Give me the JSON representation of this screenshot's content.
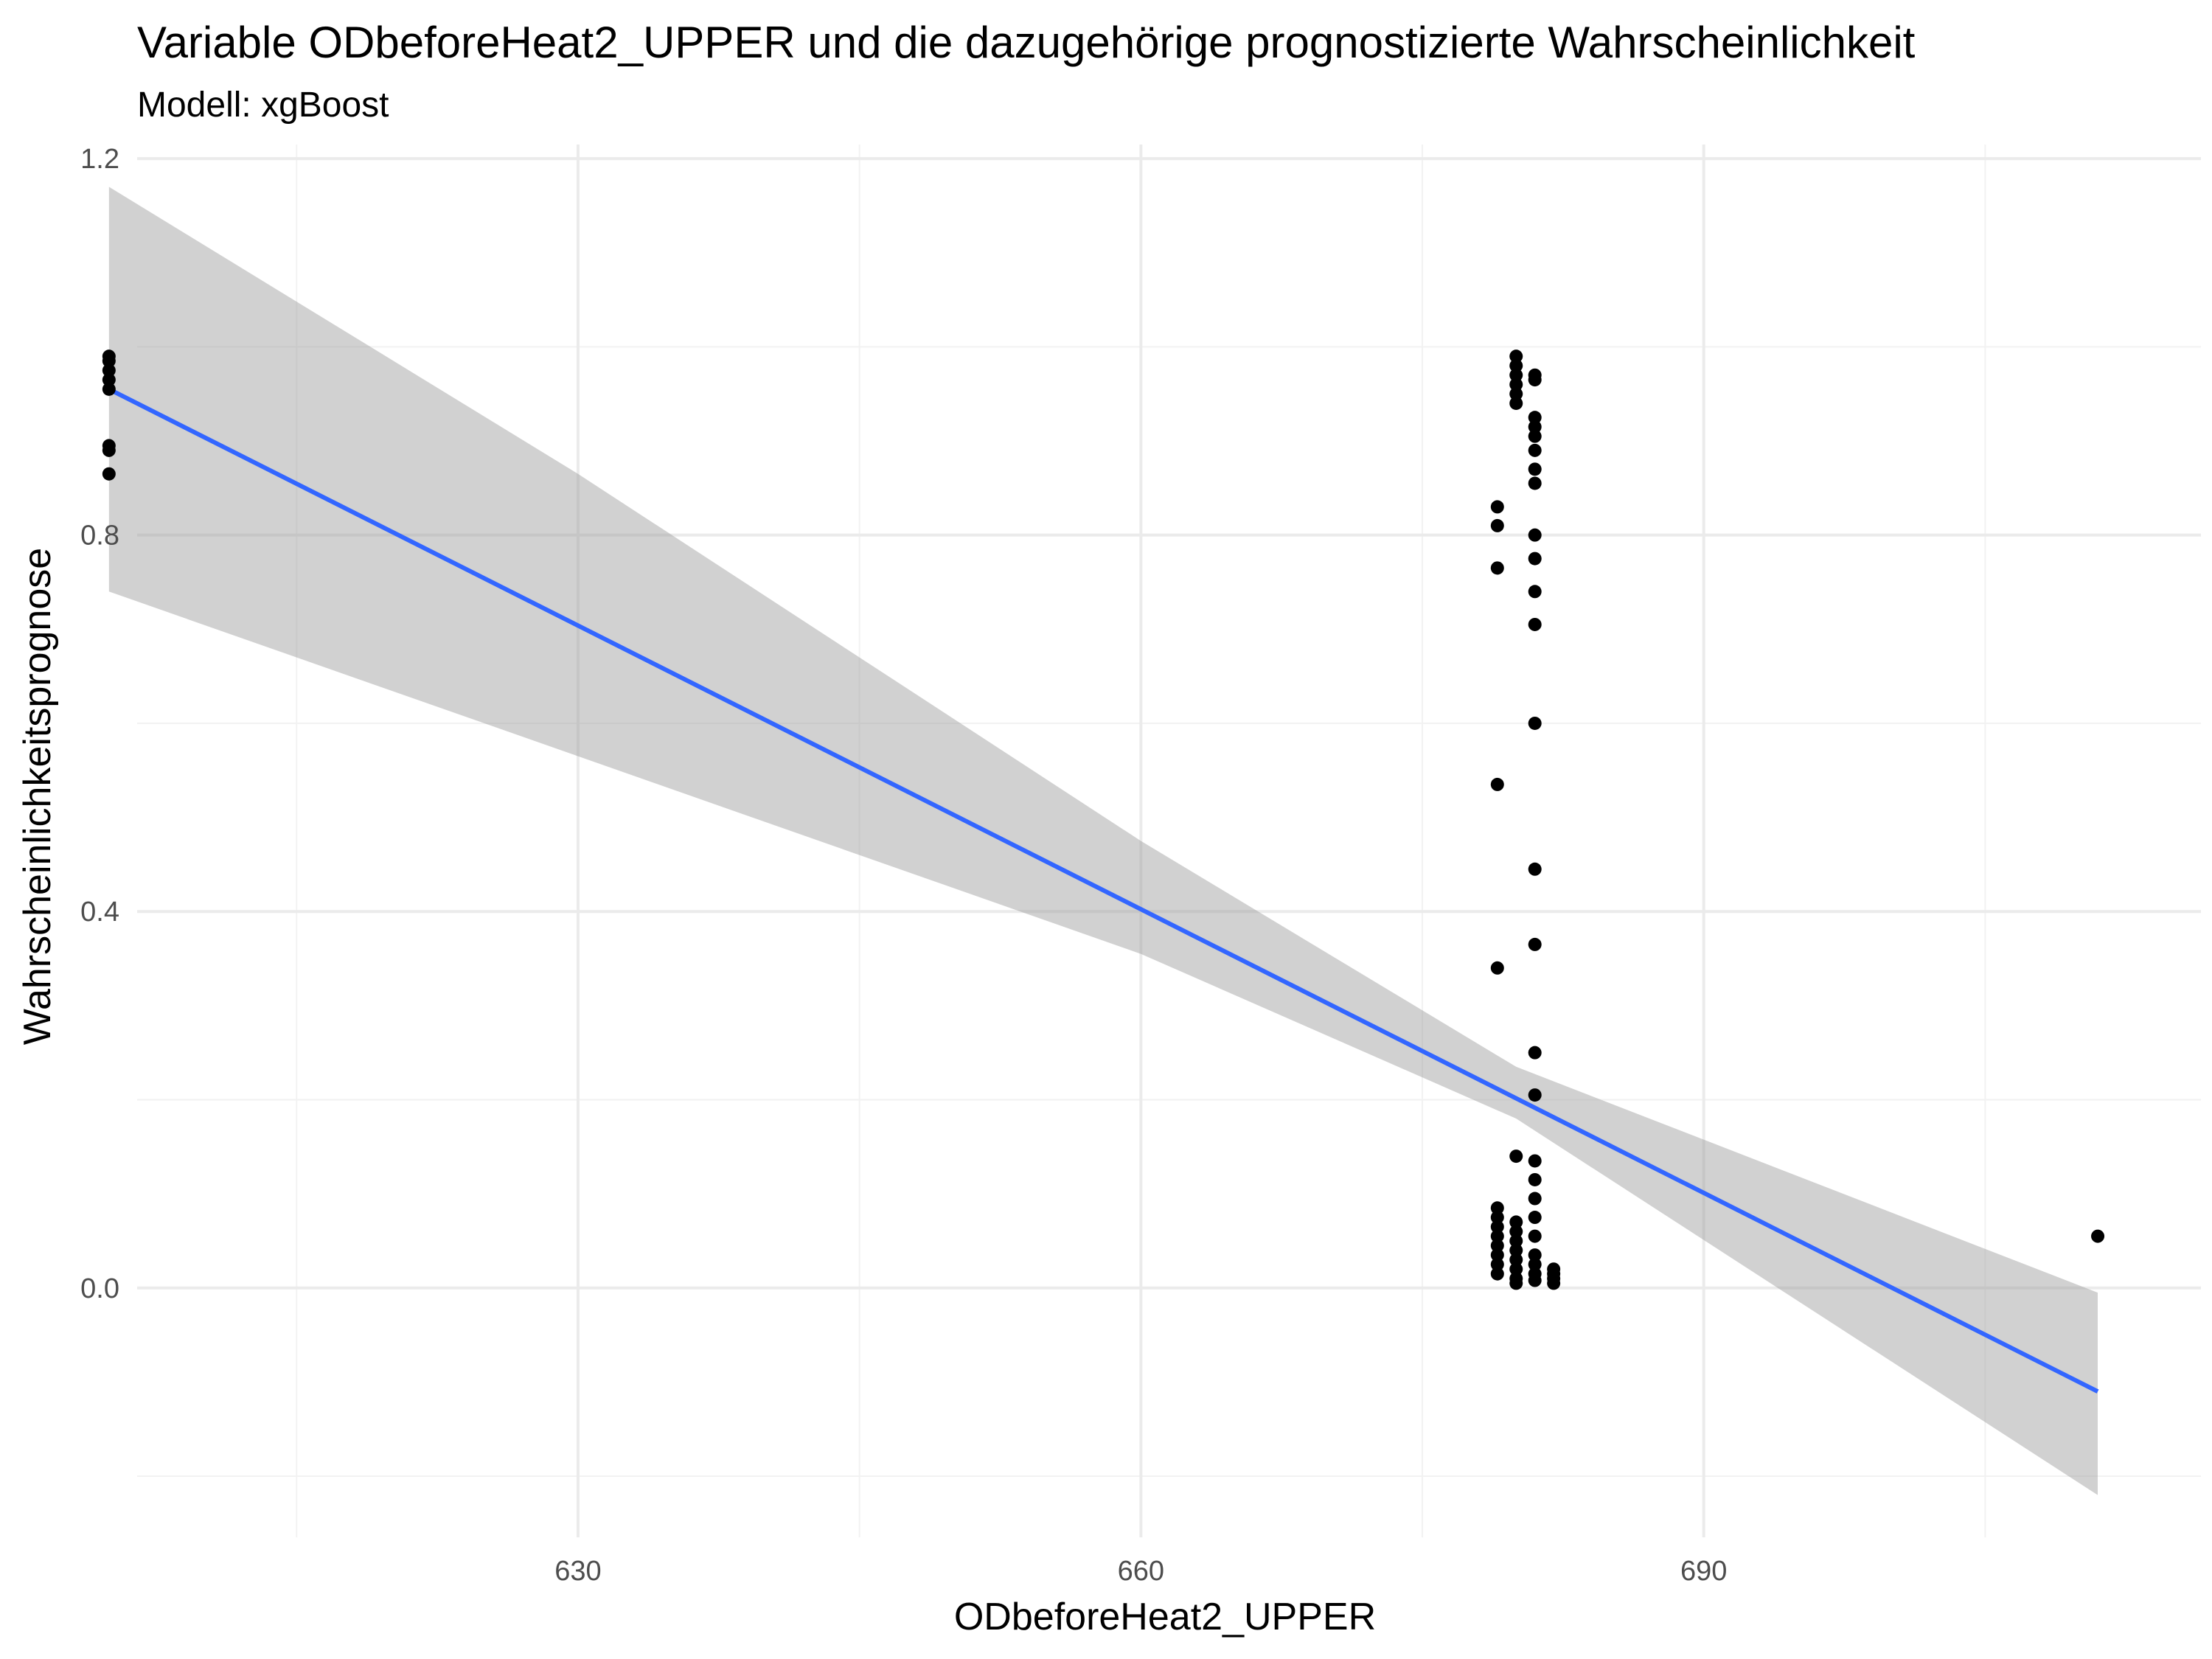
{
  "chart_data": {
    "type": "scatter",
    "title": "Variable ODbeforeHeat2_UPPER und die dazugehörige prognostizierte Wahrscheinlichkeit",
    "subtitle": "Modell: xgBoost",
    "xlabel": "ODbeforeHeat2_UPPER",
    "ylabel": "Wahrscheinlichkeitsprognose",
    "xlim": [
      606.5,
      716.5
    ],
    "ylim": [
      -0.265,
      1.215
    ],
    "x_ticks": [
      630,
      660,
      690
    ],
    "x_tick_labels": [
      "630",
      "660",
      "690"
    ],
    "x_minor_ticks": [
      615,
      645,
      675,
      705
    ],
    "y_ticks": [
      0.0,
      0.4,
      0.8,
      1.2
    ],
    "y_tick_labels": [
      "0.0",
      "0.4",
      "0.8",
      "1.2"
    ],
    "y_minor_ticks": [
      -0.2,
      0.2,
      0.6,
      1.0
    ],
    "grid": true,
    "colors": {
      "points": "#000000",
      "fit_line": "#3366ff",
      "confidence_band": "#999999",
      "grid_major": "#ebebeb",
      "grid_minor": "#f2f2f2"
    },
    "points": [
      {
        "x": 605,
        "y": 0.99
      },
      {
        "x": 605,
        "y": 0.985
      },
      {
        "x": 605,
        "y": 0.975
      },
      {
        "x": 605,
        "y": 0.965
      },
      {
        "x": 605,
        "y": 0.955
      },
      {
        "x": 605,
        "y": 0.895
      },
      {
        "x": 605,
        "y": 0.89
      },
      {
        "x": 605,
        "y": 0.865
      },
      {
        "x": 679,
        "y": 0.83
      },
      {
        "x": 679,
        "y": 0.81
      },
      {
        "x": 679,
        "y": 0.765
      },
      {
        "x": 679,
        "y": 0.535
      },
      {
        "x": 679,
        "y": 0.34
      },
      {
        "x": 679,
        "y": 0.085
      },
      {
        "x": 679,
        "y": 0.075
      },
      {
        "x": 679,
        "y": 0.065
      },
      {
        "x": 679,
        "y": 0.055
      },
      {
        "x": 679,
        "y": 0.045
      },
      {
        "x": 679,
        "y": 0.035
      },
      {
        "x": 679,
        "y": 0.025
      },
      {
        "x": 679,
        "y": 0.015
      },
      {
        "x": 680,
        "y": 0.99
      },
      {
        "x": 680,
        "y": 0.98
      },
      {
        "x": 680,
        "y": 0.97
      },
      {
        "x": 680,
        "y": 0.96
      },
      {
        "x": 680,
        "y": 0.95
      },
      {
        "x": 680,
        "y": 0.94
      },
      {
        "x": 680,
        "y": 0.14
      },
      {
        "x": 680,
        "y": 0.07
      },
      {
        "x": 680,
        "y": 0.06
      },
      {
        "x": 680,
        "y": 0.05
      },
      {
        "x": 680,
        "y": 0.04
      },
      {
        "x": 680,
        "y": 0.03
      },
      {
        "x": 680,
        "y": 0.02
      },
      {
        "x": 680,
        "y": 0.01
      },
      {
        "x": 680,
        "y": 0.005
      },
      {
        "x": 681,
        "y": 0.97
      },
      {
        "x": 681,
        "y": 0.965
      },
      {
        "x": 681,
        "y": 0.925
      },
      {
        "x": 681,
        "y": 0.915
      },
      {
        "x": 681,
        "y": 0.905
      },
      {
        "x": 681,
        "y": 0.89
      },
      {
        "x": 681,
        "y": 0.87
      },
      {
        "x": 681,
        "y": 0.855
      },
      {
        "x": 681,
        "y": 0.8
      },
      {
        "x": 681,
        "y": 0.775
      },
      {
        "x": 681,
        "y": 0.74
      },
      {
        "x": 681,
        "y": 0.705
      },
      {
        "x": 681,
        "y": 0.6
      },
      {
        "x": 681,
        "y": 0.445
      },
      {
        "x": 681,
        "y": 0.365
      },
      {
        "x": 681,
        "y": 0.25
      },
      {
        "x": 681,
        "y": 0.205
      },
      {
        "x": 681,
        "y": 0.135
      },
      {
        "x": 681,
        "y": 0.115
      },
      {
        "x": 681,
        "y": 0.095
      },
      {
        "x": 681,
        "y": 0.075
      },
      {
        "x": 681,
        "y": 0.055
      },
      {
        "x": 681,
        "y": 0.035
      },
      {
        "x": 681,
        "y": 0.025
      },
      {
        "x": 681,
        "y": 0.015
      },
      {
        "x": 681,
        "y": 0.008
      },
      {
        "x": 682,
        "y": 0.02
      },
      {
        "x": 682,
        "y": 0.015
      },
      {
        "x": 682,
        "y": 0.01
      },
      {
        "x": 682,
        "y": 0.005
      },
      {
        "x": 711,
        "y": 0.055
      }
    ],
    "fit_line": [
      {
        "x": 605,
        "y": 0.955
      },
      {
        "x": 711,
        "y": -0.11
      }
    ],
    "confidence_band": [
      {
        "x": 605,
        "upper": 1.17,
        "lower": 0.74
      },
      {
        "x": 630,
        "upper": 0.865,
        "lower": 0.565
      },
      {
        "x": 660,
        "upper": 0.475,
        "lower": 0.355
      },
      {
        "x": 680,
        "upper": 0.235,
        "lower": 0.18
      },
      {
        "x": 711,
        "upper": -0.005,
        "lower": -0.22
      }
    ]
  }
}
